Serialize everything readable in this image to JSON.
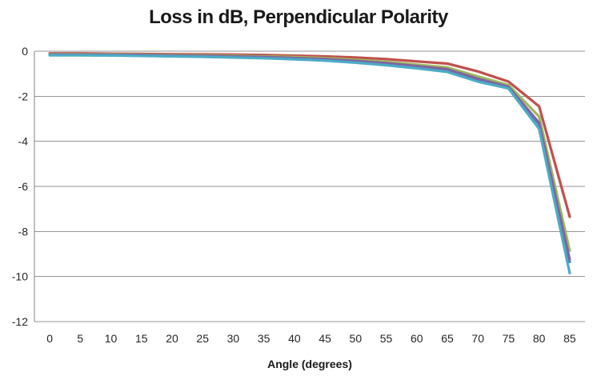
{
  "chart_data": {
    "type": "line",
    "title": "Loss in dB, Perpendicular Polarity",
    "xlabel": "Angle (degrees)",
    "ylabel": "",
    "x": [
      0,
      5,
      10,
      15,
      20,
      25,
      30,
      35,
      40,
      45,
      50,
      55,
      60,
      65,
      70,
      75,
      80,
      85
    ],
    "ylim": [
      -12,
      0
    ],
    "yticks": [
      0,
      -2,
      -4,
      -6,
      -8,
      -10,
      -12
    ],
    "grid": "horizontal",
    "legend": "none",
    "colors": {
      "gridline": "#969696",
      "axis": "#808080",
      "tick_text": "#262626",
      "title_text": "#1a1a1a"
    },
    "series": [
      {
        "name": "series-blue",
        "color": "#4F81BD",
        "values": [
          -0.16,
          -0.16,
          -0.17,
          -0.18,
          -0.2,
          -0.22,
          -0.24,
          -0.27,
          -0.31,
          -0.37,
          -0.45,
          -0.55,
          -0.68,
          -0.83,
          -1.25,
          -1.6,
          -3.25,
          -9.35
        ]
      },
      {
        "name": "series-red",
        "color": "#C0504D",
        "values": [
          -0.1,
          -0.1,
          -0.11,
          -0.12,
          -0.13,
          -0.14,
          -0.15,
          -0.17,
          -0.2,
          -0.23,
          -0.28,
          -0.35,
          -0.45,
          -0.55,
          -0.9,
          -1.35,
          -2.45,
          -7.35
        ]
      },
      {
        "name": "series-green",
        "color": "#9BBB59",
        "values": [
          -0.13,
          -0.13,
          -0.14,
          -0.15,
          -0.17,
          -0.18,
          -0.2,
          -0.23,
          -0.26,
          -0.31,
          -0.38,
          -0.47,
          -0.6,
          -0.72,
          -1.12,
          -1.5,
          -2.9,
          -8.85
        ]
      },
      {
        "name": "series-purple",
        "color": "#8064A2",
        "values": [
          -0.15,
          -0.15,
          -0.16,
          -0.17,
          -0.19,
          -0.21,
          -0.23,
          -0.26,
          -0.3,
          -0.35,
          -0.43,
          -0.53,
          -0.66,
          -0.8,
          -1.22,
          -1.58,
          -3.18,
          -9.25
        ]
      },
      {
        "name": "series-cyan",
        "color": "#4BACC6",
        "values": [
          -0.18,
          -0.18,
          -0.19,
          -0.21,
          -0.23,
          -0.25,
          -0.28,
          -0.31,
          -0.36,
          -0.42,
          -0.51,
          -0.62,
          -0.76,
          -0.92,
          -1.35,
          -1.65,
          -3.45,
          -9.85
        ]
      }
    ]
  }
}
